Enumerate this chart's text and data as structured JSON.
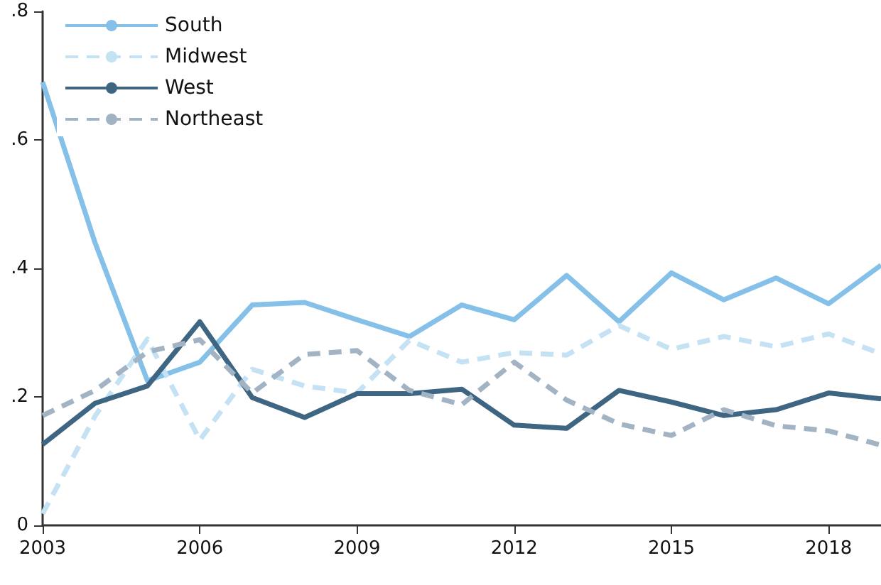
{
  "chart_data": {
    "type": "line",
    "x": [
      2003,
      2004,
      2005,
      2006,
      2007,
      2008,
      2009,
      2010,
      2011,
      2012,
      2013,
      2014,
      2015,
      2016,
      2017,
      2018,
      2019
    ],
    "series": [
      {
        "name": "South",
        "color": "#85c0e9",
        "line_style": "solid",
        "values": [
          0.69,
          0.44,
          0.225,
          0.254,
          0.343,
          0.347,
          0.32,
          0.294,
          0.343,
          0.32,
          0.389,
          0.317,
          0.393,
          0.351,
          0.385,
          0.345,
          0.405
        ]
      },
      {
        "name": "Midwest",
        "color": "#c5e2f5",
        "line_style": "dashed",
        "values": [
          0.018,
          0.17,
          0.29,
          0.133,
          0.243,
          0.217,
          0.206,
          0.288,
          0.254,
          0.269,
          0.265,
          0.311,
          0.274,
          0.294,
          0.278,
          0.298,
          0.267
        ]
      },
      {
        "name": "West",
        "color": "#3e6582",
        "line_style": "solid",
        "values": [
          0.126,
          0.19,
          0.217,
          0.317,
          0.199,
          0.168,
          0.205,
          0.205,
          0.212,
          0.156,
          0.151,
          0.21,
          0.192,
          0.171,
          0.18,
          0.206,
          0.197
        ]
      },
      {
        "name": "Northeast",
        "color": "#a2b4c4",
        "line_style": "dashed",
        "values": [
          0.171,
          0.21,
          0.27,
          0.289,
          0.206,
          0.266,
          0.272,
          0.21,
          0.188,
          0.254,
          0.195,
          0.158,
          0.14,
          0.18,
          0.155,
          0.147,
          0.125
        ]
      }
    ],
    "xlim": [
      2003,
      2019
    ],
    "xticks": [
      2003,
      2006,
      2009,
      2012,
      2015,
      2018
    ],
    "ylim": [
      0,
      0.8
    ],
    "yticks": [
      0,
      {
        "value": 0.2,
        "label": ".2"
      },
      {
        "value": 0.4,
        "label": ".4"
      },
      {
        "value": 0.6,
        "label": ".6"
      },
      {
        "value": 0.8,
        "label": ".8"
      }
    ],
    "grid": false,
    "legend": "top left",
    "marker": "none"
  }
}
